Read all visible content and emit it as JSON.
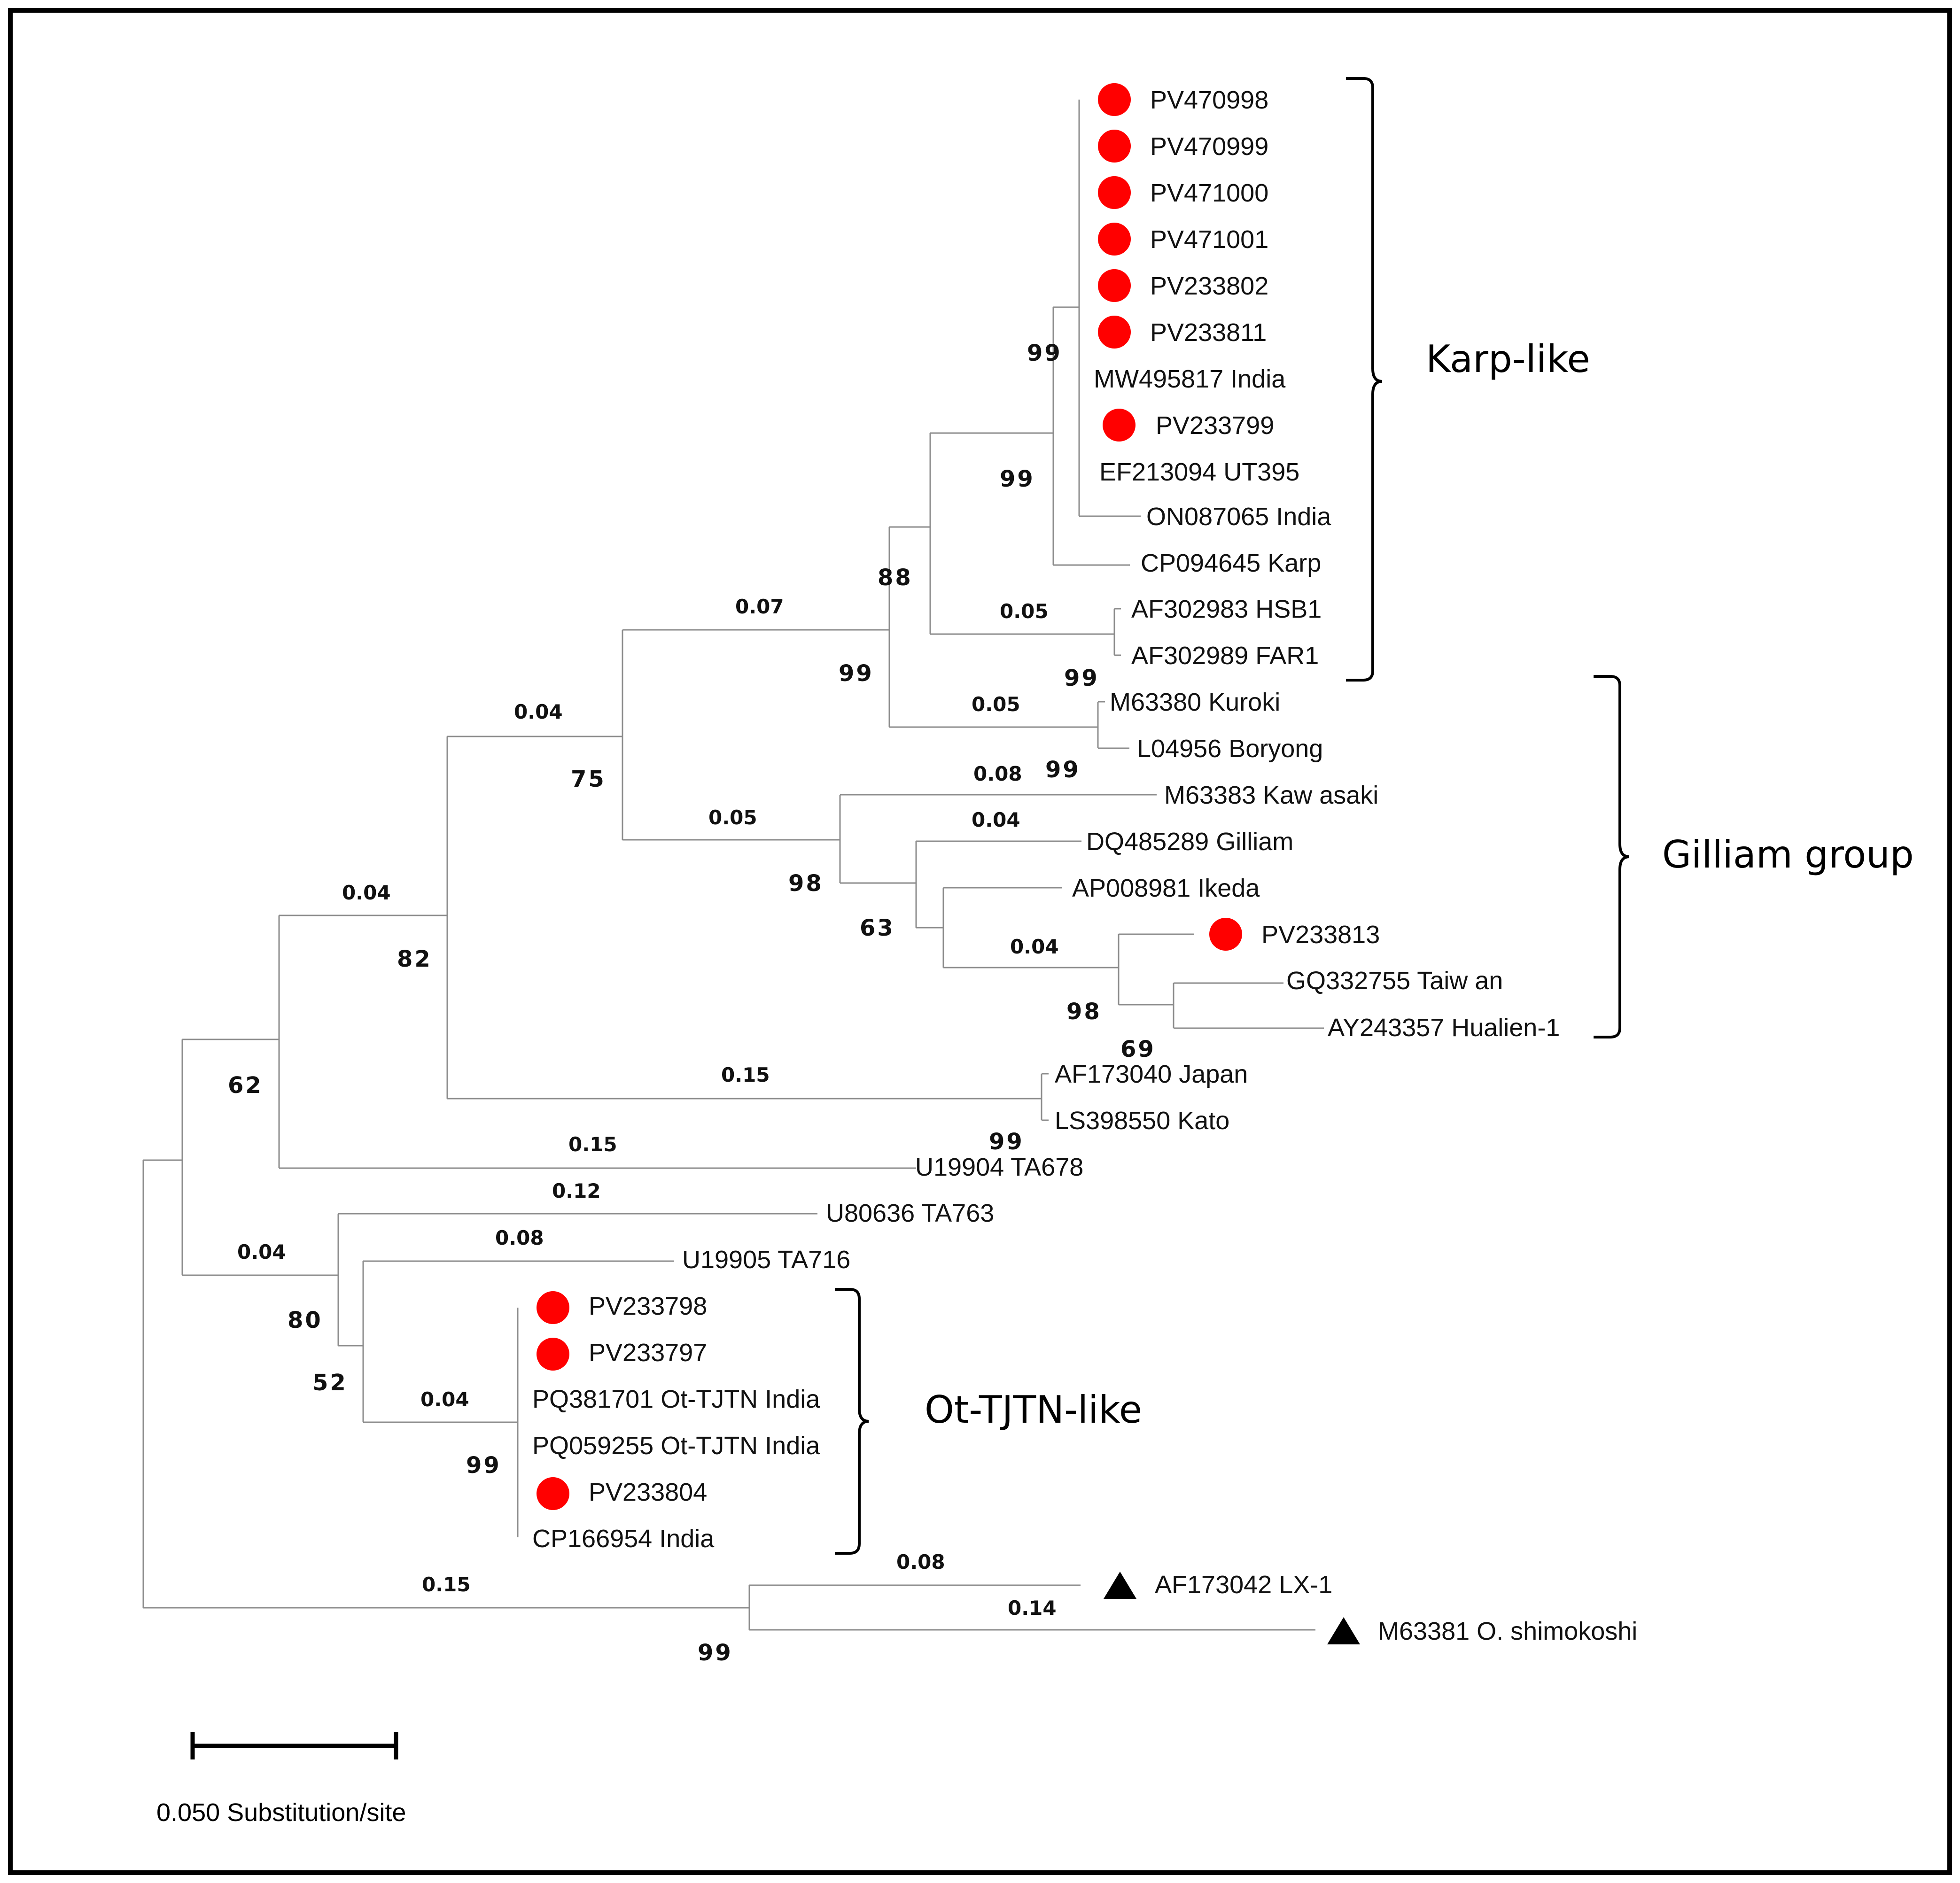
{
  "tree": {
    "leaves": [
      {
        "label": "PV470998",
        "marker": "circle"
      },
      {
        "label": "PV470999",
        "marker": "circle"
      },
      {
        "label": "PV471000",
        "marker": "circle"
      },
      {
        "label": "PV471001",
        "marker": "circle"
      },
      {
        "label": "PV233802",
        "marker": "circle"
      },
      {
        "label": "PV233811",
        "marker": "circle"
      },
      {
        "label": "MW495817 India",
        "marker": "none"
      },
      {
        "label": "PV233799",
        "marker": "circle"
      },
      {
        "label": "EF213094 UT395",
        "marker": "none"
      },
      {
        "label": "ON087065 India",
        "marker": "none"
      },
      {
        "label": "CP094645 Karp",
        "marker": "none"
      },
      {
        "label": "AF302983 HSB1",
        "marker": "none"
      },
      {
        "label": "AF302989 FAR1",
        "marker": "none"
      },
      {
        "label": "M63380 Kuroki",
        "marker": "none"
      },
      {
        "label": "L04956 Boryong",
        "marker": "none"
      },
      {
        "label": "M63383 Kaw asaki",
        "marker": "none"
      },
      {
        "label": "DQ485289 Gilliam",
        "marker": "none"
      },
      {
        "label": "AP008981 Ikeda",
        "marker": "none"
      },
      {
        "label": "PV233813",
        "marker": "circle"
      },
      {
        "label": "GQ332755 Taiw an",
        "marker": "none"
      },
      {
        "label": "AY243357 Hualien-1",
        "marker": "none"
      },
      {
        "label": "AF173040 Japan",
        "marker": "none"
      },
      {
        "label": "LS398550 Kato",
        "marker": "none"
      },
      {
        "label": "U19904 TA678",
        "marker": "none"
      },
      {
        "label": "U80636 TA763",
        "marker": "none"
      },
      {
        "label": "U19905 TA716",
        "marker": "none"
      },
      {
        "label": "PV233798",
        "marker": "circle"
      },
      {
        "label": "PV233797",
        "marker": "circle"
      },
      {
        "label": "PQ381701 Ot-TJTN India",
        "marker": "none"
      },
      {
        "label": "PQ059255 Ot-TJTN India",
        "marker": "none"
      },
      {
        "label": "PV233804",
        "marker": "circle"
      },
      {
        "label": "CP166954 India",
        "marker": "none"
      },
      {
        "label": "AF173042 LX-1",
        "marker": "triangle"
      },
      {
        "label": "M63381 O. shimokoshi",
        "marker": "triangle"
      }
    ],
    "branch_lengths": [
      "0.07",
      "0.04",
      "0.04",
      "0.05",
      "0.05",
      "0.08",
      "0.05",
      "0.04",
      "0.04",
      "0.15",
      "0.15",
      "0.04",
      "0.12",
      "0.08",
      "0.04",
      "0.15",
      "0.08",
      "0.14"
    ],
    "bootstrap": [
      "99",
      "99",
      "88",
      "99",
      "99",
      "75",
      "99",
      "98",
      "63",
      "98",
      "69",
      "82",
      "99",
      "62",
      "80",
      "52",
      "99",
      "99"
    ],
    "clades": [
      "Karp-like",
      "Gilliam group",
      "Ot-TJTN-like"
    ],
    "scale_label": "0.050 Substitution/site",
    "colors": {
      "circle": "#ff0000",
      "triangle": "#000000",
      "branch": "#8c8c8c"
    }
  }
}
